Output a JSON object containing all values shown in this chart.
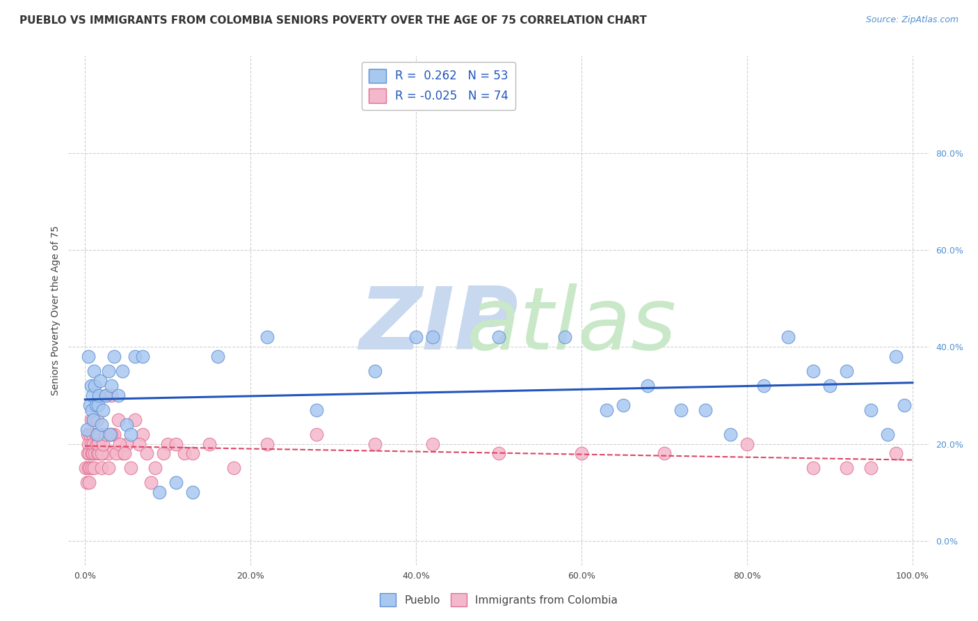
{
  "title": "PUEBLO VS IMMIGRANTS FROM COLOMBIA SENIORS POVERTY OVER THE AGE OF 75 CORRELATION CHART",
  "source": "Source: ZipAtlas.com",
  "ylabel": "Seniors Poverty Over the Age of 75",
  "xlim": [
    -0.02,
    1.02
  ],
  "ylim": [
    -0.05,
    1.0
  ],
  "xticks": [
    0.0,
    0.2,
    0.4,
    0.6,
    0.8,
    1.0
  ],
  "yticks_right": [
    0.0,
    0.2,
    0.4,
    0.6,
    0.8
  ],
  "xticklabels": [
    "0.0%",
    "20.0%",
    "40.0%",
    "60.0%",
    "80.0%",
    "100.0%"
  ],
  "yticklabels_right": [
    "0.0%",
    "20.0%",
    "40.0%",
    "60.0%",
    "80.0%"
  ],
  "pueblo_color": "#a8c8f0",
  "colombia_color": "#f4b8cc",
  "pueblo_edge": "#6090d0",
  "colombia_edge": "#e07090",
  "R_pueblo": 0.262,
  "N_pueblo": 53,
  "R_colombia": -0.025,
  "N_colombia": 74,
  "pueblo_x": [
    0.002,
    0.004,
    0.006,
    0.007,
    0.008,
    0.009,
    0.01,
    0.011,
    0.012,
    0.013,
    0.015,
    0.016,
    0.017,
    0.018,
    0.02,
    0.022,
    0.025,
    0.028,
    0.03,
    0.032,
    0.035,
    0.04,
    0.045,
    0.05,
    0.055,
    0.06,
    0.07,
    0.09,
    0.11,
    0.13,
    0.16,
    0.22,
    0.28,
    0.35,
    0.42,
    0.5,
    0.58,
    0.63,
    0.65,
    0.68,
    0.72,
    0.75,
    0.78,
    0.82,
    0.85,
    0.88,
    0.9,
    0.92,
    0.95,
    0.97,
    0.98,
    0.99,
    0.4
  ],
  "pueblo_y": [
    0.23,
    0.38,
    0.28,
    0.32,
    0.27,
    0.3,
    0.25,
    0.35,
    0.32,
    0.28,
    0.22,
    0.28,
    0.3,
    0.33,
    0.24,
    0.27,
    0.3,
    0.35,
    0.22,
    0.32,
    0.38,
    0.3,
    0.35,
    0.24,
    0.22,
    0.38,
    0.38,
    0.1,
    0.12,
    0.1,
    0.38,
    0.42,
    0.27,
    0.35,
    0.42,
    0.42,
    0.42,
    0.27,
    0.28,
    0.32,
    0.27,
    0.27,
    0.22,
    0.32,
    0.42,
    0.35,
    0.32,
    0.35,
    0.27,
    0.22,
    0.38,
    0.28,
    0.42
  ],
  "colombia_x": [
    0.001,
    0.002,
    0.003,
    0.003,
    0.004,
    0.004,
    0.005,
    0.005,
    0.006,
    0.006,
    0.007,
    0.007,
    0.008,
    0.008,
    0.009,
    0.009,
    0.01,
    0.01,
    0.011,
    0.012,
    0.013,
    0.014,
    0.015,
    0.015,
    0.016,
    0.017,
    0.018,
    0.019,
    0.02,
    0.022,
    0.025,
    0.028,
    0.03,
    0.032,
    0.035,
    0.04,
    0.045,
    0.05,
    0.06,
    0.07,
    0.08,
    0.1,
    0.12,
    0.15,
    0.18,
    0.22,
    0.28,
    0.35,
    0.42,
    0.5,
    0.6,
    0.7,
    0.8,
    0.88,
    0.92,
    0.95,
    0.98,
    0.013,
    0.016,
    0.02,
    0.022,
    0.025,
    0.028,
    0.032,
    0.038,
    0.042,
    0.048,
    0.055,
    0.065,
    0.075,
    0.085,
    0.095,
    0.11,
    0.13
  ],
  "colombia_y": [
    0.15,
    0.12,
    0.18,
    0.22,
    0.15,
    0.2,
    0.18,
    0.12,
    0.22,
    0.15,
    0.2,
    0.25,
    0.18,
    0.15,
    0.22,
    0.18,
    0.2,
    0.25,
    0.15,
    0.18,
    0.22,
    0.2,
    0.25,
    0.18,
    0.22,
    0.18,
    0.2,
    0.22,
    0.15,
    0.18,
    0.3,
    0.18,
    0.22,
    0.3,
    0.22,
    0.25,
    0.18,
    0.2,
    0.25,
    0.22,
    0.12,
    0.2,
    0.18,
    0.2,
    0.15,
    0.2,
    0.22,
    0.2,
    0.2,
    0.18,
    0.18,
    0.18,
    0.2,
    0.15,
    0.15,
    0.15,
    0.18,
    0.22,
    0.2,
    0.18,
    0.2,
    0.22,
    0.15,
    0.22,
    0.18,
    0.2,
    0.18,
    0.15,
    0.2,
    0.18,
    0.15,
    0.18,
    0.2,
    0.18
  ],
  "background_color": "#ffffff",
  "grid_color": "#d0d0d0",
  "title_fontsize": 11,
  "axis_label_fontsize": 10,
  "tick_fontsize": 9,
  "right_ytick_color": "#5090d0",
  "blue_line_color": "#2255bb",
  "pink_line_color": "#dd4466",
  "watermark_zip_color": "#c8d8ee",
  "watermark_atlas_color": "#c8e8c8"
}
